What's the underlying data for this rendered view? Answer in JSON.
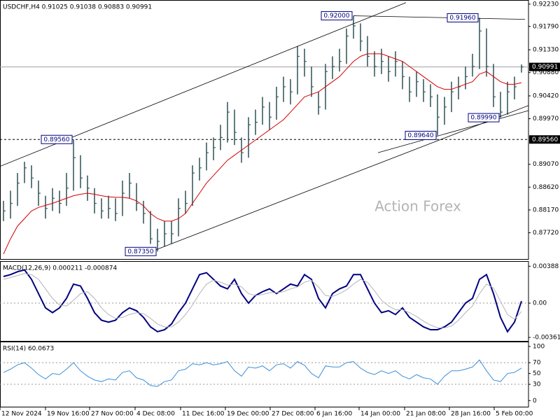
{
  "chart_data": [
    {
      "type": "ohlc",
      "title": "USDCHF,H4 0.91025 0.91038 0.90883 0.90991",
      "watermark": "Action Forex",
      "xlim": [
        0,
        75.5
      ],
      "ylim": [
        0.8723,
        0.9227
      ],
      "yticks": [
        {
          "value": 0.9223,
          "label": "0.92230"
        },
        {
          "value": 0.9179,
          "label": "0.91790"
        },
        {
          "value": 0.9133,
          "label": "0.91330"
        },
        {
          "value": 0.9088,
          "label": "0.90880"
        },
        {
          "value": 0.9042,
          "label": "0.90420"
        },
        {
          "value": 0.8997,
          "label": "0.89970"
        },
        {
          "value": 0.8907,
          "label": "0.89070"
        },
        {
          "value": 0.8862,
          "label": "0.88620"
        },
        {
          "value": 0.8817,
          "label": "0.88170"
        },
        {
          "value": 0.8772,
          "label": "0.87720"
        }
      ],
      "bar_color": "#3b5b61",
      "high": [
        0.8835,
        0.8855,
        0.889,
        0.8912,
        0.8905,
        0.8875,
        0.8845,
        0.886,
        0.8855,
        0.889,
        0.8956,
        0.8925,
        0.8885,
        0.886,
        0.884,
        0.8845,
        0.884,
        0.8875,
        0.889,
        0.887,
        0.8835,
        0.8815,
        0.878,
        0.8795,
        0.8795,
        0.884,
        0.8855,
        0.8905,
        0.892,
        0.895,
        0.896,
        0.8985,
        0.903,
        0.9015,
        0.896,
        0.9,
        0.9015,
        0.904,
        0.903,
        0.906,
        0.908,
        0.9075,
        0.914,
        0.9135,
        0.91,
        0.905,
        0.9105,
        0.912,
        0.9135,
        0.9175,
        0.92,
        0.9185,
        0.916,
        0.913,
        0.9135,
        0.912,
        0.913,
        0.911,
        0.908,
        0.909,
        0.9075,
        0.9065,
        0.9045,
        0.904,
        0.907,
        0.908,
        0.91,
        0.9125,
        0.9196,
        0.9175,
        0.9105,
        0.905,
        0.907,
        0.908,
        0.9104
      ],
      "low": [
        0.8795,
        0.88,
        0.8825,
        0.887,
        0.886,
        0.8825,
        0.88,
        0.8815,
        0.881,
        0.8825,
        0.8855,
        0.886,
        0.8835,
        0.881,
        0.88,
        0.88,
        0.8795,
        0.8805,
        0.884,
        0.8815,
        0.879,
        0.875,
        0.8735,
        0.8745,
        0.875,
        0.8765,
        0.881,
        0.8825,
        0.8875,
        0.8895,
        0.8915,
        0.8935,
        0.895,
        0.8945,
        0.891,
        0.892,
        0.8965,
        0.8985,
        0.8975,
        0.8995,
        0.903,
        0.9025,
        0.9045,
        0.908,
        0.904,
        0.9005,
        0.9015,
        0.9075,
        0.909,
        0.9105,
        0.9155,
        0.913,
        0.91,
        0.908,
        0.9085,
        0.907,
        0.908,
        0.9055,
        0.903,
        0.904,
        0.903,
        0.902,
        0.8964,
        0.8985,
        0.901,
        0.9035,
        0.9055,
        0.908,
        0.9095,
        0.908,
        0.902,
        0.8999,
        0.9005,
        0.9035,
        0.9088
      ],
      "close": [
        0.8815,
        0.883,
        0.887,
        0.89,
        0.888,
        0.885,
        0.882,
        0.884,
        0.883,
        0.886,
        0.892,
        0.888,
        0.886,
        0.883,
        0.8815,
        0.882,
        0.881,
        0.885,
        0.887,
        0.883,
        0.881,
        0.876,
        0.8755,
        0.877,
        0.877,
        0.882,
        0.883,
        0.889,
        0.89,
        0.893,
        0.894,
        0.896,
        0.901,
        0.897,
        0.893,
        0.8985,
        0.899,
        0.902,
        0.9,
        0.904,
        0.906,
        0.905,
        0.912,
        0.911,
        0.906,
        0.902,
        0.909,
        0.91,
        0.911,
        0.916,
        0.918,
        0.915,
        0.912,
        0.91,
        0.911,
        0.909,
        0.911,
        0.908,
        0.905,
        0.907,
        0.905,
        0.904,
        0.9,
        0.902,
        0.905,
        0.906,
        0.908,
        0.91,
        0.917,
        0.91,
        0.904,
        0.901,
        0.905,
        0.906,
        0.90991
      ],
      "ma": {
        "color": "#d40000",
        "values": [
          0.873,
          0.876,
          0.8785,
          0.88,
          0.8815,
          0.8822,
          0.8826,
          0.883,
          0.8835,
          0.884,
          0.8845,
          0.8848,
          0.885,
          0.8848,
          0.8845,
          0.8843,
          0.8842,
          0.8842,
          0.884,
          0.8835,
          0.8825,
          0.881,
          0.88,
          0.8795,
          0.8795,
          0.88,
          0.881,
          0.883,
          0.885,
          0.887,
          0.8885,
          0.89,
          0.8915,
          0.8925,
          0.8935,
          0.8945,
          0.8955,
          0.8965,
          0.8975,
          0.8985,
          0.8995,
          0.901,
          0.9025,
          0.904,
          0.9045,
          0.905,
          0.906,
          0.907,
          0.908,
          0.9095,
          0.911,
          0.912,
          0.9125,
          0.9125,
          0.9125,
          0.912,
          0.9115,
          0.911,
          0.91,
          0.909,
          0.908,
          0.907,
          0.906,
          0.9055,
          0.9055,
          0.906,
          0.9065,
          0.907,
          0.9085,
          0.909,
          0.908,
          0.907,
          0.9065,
          0.9065,
          0.9068
        ]
      },
      "trendlines": [
        {
          "x": [
            0,
            58
          ],
          "y": [
            0.8903,
            0.9226
          ]
        },
        {
          "x": [
            22,
            75.5
          ],
          "y": [
            0.8737,
            0.9023
          ]
        },
        {
          "x": [
            50.5,
            75
          ],
          "y": [
            0.92,
            0.9193
          ]
        },
        {
          "x": [
            54,
            75.5
          ],
          "y": [
            0.893,
            0.9013
          ]
        }
      ],
      "hline": {
        "value": 0.8956,
        "label": "0.89560"
      },
      "last_price": {
        "value": 0.90991,
        "label": "0.90991"
      },
      "annotations": [
        {
          "value": 0.8956,
          "label": "0.89560"
        },
        {
          "value": 0.8735,
          "label": "0.87350"
        },
        {
          "value": 0.92,
          "label": "0.92000"
        },
        {
          "value": 0.8964,
          "label": "0.89640"
        },
        {
          "value": 0.9196,
          "label": "0.91960"
        },
        {
          "value": 0.8999,
          "label": "0.89990"
        }
      ]
    },
    {
      "type": "line",
      "title": "MACD(12,26,9) 0.000211 -0.000874",
      "ylim": [
        -0.0039,
        0.0042
      ],
      "yticks": [
        0.00388,
        {
          "value": 0,
          "label": "0.00"
        },
        -0.00361
      ],
      "dashed_levels": [
        0
      ],
      "series": [
        {
          "color": "#000080",
          "width": 2,
          "values": [
            0.0028,
            0.003,
            0.0033,
            0.0035,
            0.0025,
            0.001,
            -0.0005,
            -0.001,
            -0.0005,
            0.0005,
            0.002,
            0.0018,
            0.0005,
            -0.001,
            -0.0018,
            -0.002,
            -0.0018,
            -0.001,
            -0.0005,
            -0.0008,
            -0.0015,
            -0.0025,
            -0.003,
            -0.0028,
            -0.0022,
            -0.001,
            0.0,
            0.0015,
            0.003,
            0.0032,
            0.0025,
            0.0018,
            0.0015,
            0.0025,
            0.001,
            0.0,
            0.0008,
            0.0012,
            0.0015,
            0.001,
            0.0015,
            0.002,
            0.0018,
            0.003,
            0.0025,
            0.0005,
            -0.0005,
            0.001,
            0.0015,
            0.0018,
            0.003,
            0.003,
            0.0015,
            0.0,
            -0.001,
            -0.0008,
            -0.0012,
            -0.0005,
            -0.0015,
            -0.002,
            -0.0025,
            -0.0028,
            -0.0028,
            -0.0025,
            -0.002,
            -0.001,
            0.0,
            0.0005,
            0.0025,
            0.003,
            0.001,
            -0.0015,
            -0.003,
            -0.002,
            0.000211
          ]
        },
        {
          "color": "#b4b4b4",
          "width": 1,
          "values": [
            0.0025,
            0.0027,
            0.0029,
            0.0031,
            0.003,
            0.0025,
            0.0015,
            0.0005,
            -0.0002,
            -0.0003,
            0.0003,
            0.001,
            0.0012,
            0.0005,
            -0.0005,
            -0.0012,
            -0.0016,
            -0.0015,
            -0.0012,
            -0.001,
            -0.0011,
            -0.0016,
            -0.0022,
            -0.0025,
            -0.0025,
            -0.002,
            -0.0012,
            -0.0002,
            0.001,
            0.002,
            0.0024,
            0.0022,
            0.0019,
            0.002,
            0.0017,
            0.001,
            0.0008,
            0.0009,
            0.0011,
            0.0011,
            0.0012,
            0.0015,
            0.0017,
            0.0022,
            0.0024,
            0.0017,
            0.0008,
            0.0007,
            0.001,
            0.0014,
            0.002,
            0.0025,
            0.0022,
            0.0013,
            0.0003,
            -0.0003,
            -0.0007,
            -0.0007,
            -0.001,
            -0.0014,
            -0.0019,
            -0.0023,
            -0.0026,
            -0.0026,
            -0.0024,
            -0.0018,
            -0.001,
            -0.0003,
            0.001,
            0.002,
            0.0016,
            0.0002,
            -0.0012,
            -0.0017,
            -0.000874
          ]
        }
      ]
    },
    {
      "type": "line",
      "title": "RSI(14) 60.0673",
      "ylim": [
        -10,
        105
      ],
      "yticks": [
        100,
        70,
        50,
        30,
        0
      ],
      "dashed_levels": [
        70,
        30
      ],
      "series": [
        {
          "color": "#3c8fd8",
          "width": 1,
          "values": [
            52,
            58,
            66,
            70,
            60,
            48,
            40,
            50,
            48,
            58,
            70,
            55,
            45,
            38,
            35,
            40,
            38,
            52,
            55,
            42,
            38,
            28,
            26,
            35,
            38,
            55,
            58,
            68,
            66,
            70,
            66,
            68,
            72,
            55,
            45,
            62,
            60,
            64,
            55,
            66,
            68,
            60,
            72,
            65,
            50,
            42,
            64,
            62,
            62,
            70,
            72,
            60,
            52,
            48,
            55,
            50,
            55,
            45,
            40,
            48,
            42,
            40,
            30,
            45,
            55,
            55,
            58,
            62,
            75,
            55,
            38,
            35,
            50,
            52,
            60.0673
          ]
        }
      ],
      "xticks": [
        {
          "value": 0,
          "label": "12 Nov 2024"
        },
        {
          "value": 6.5,
          "label": "19 Nov 16:00"
        },
        {
          "value": 12.8,
          "label": "27 Nov 00:00"
        },
        {
          "value": 19.3,
          "label": "4 Dec 08:00"
        },
        {
          "value": 25.8,
          "label": "11 Dec 16:00"
        },
        {
          "value": 32.2,
          "label": "19 Dec 00:00"
        },
        {
          "value": 38.6,
          "label": "27 Dec 08:00"
        },
        {
          "value": 45,
          "label": "6 Jan 16:00"
        },
        {
          "value": 51.3,
          "label": "14 Jan 00:00"
        },
        {
          "value": 57.8,
          "label": "21 Jan 08:00"
        },
        {
          "value": 64.2,
          "label": "28 Jan 16:00"
        },
        {
          "value": 70.6,
          "label": "5 Feb 00:00"
        }
      ]
    }
  ]
}
